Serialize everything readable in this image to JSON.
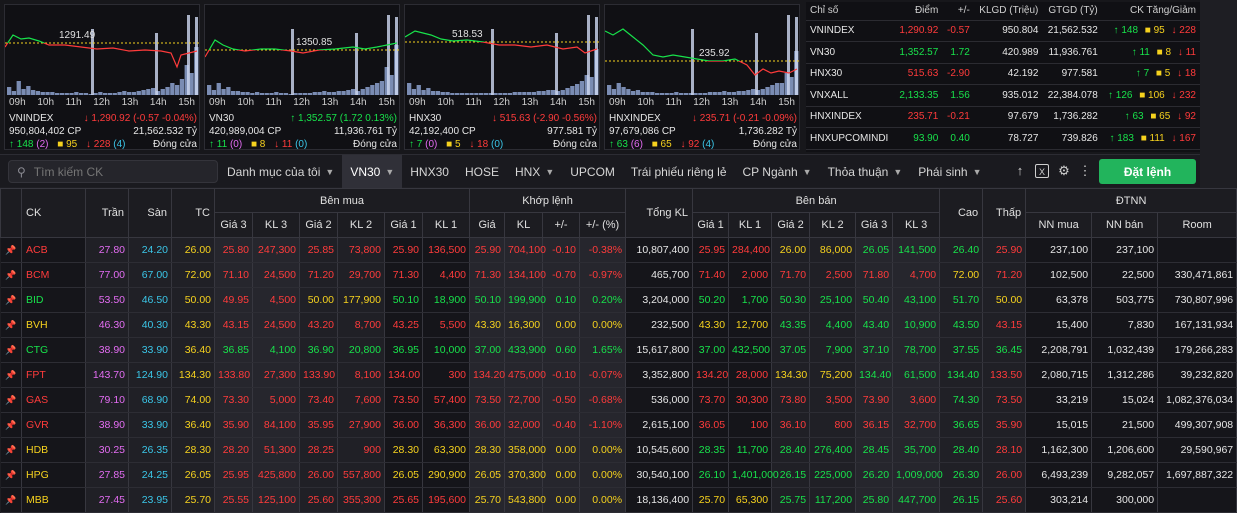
{
  "colors": {
    "up": "#18e24b",
    "down": "#ff3b3b",
    "ref": "#f6d21e",
    "ceiling": "#e36cf2",
    "floor": "#3bc6e8"
  },
  "mini_charts": [
    {
      "name": "VNINDEX",
      "ref_label": "1291.49",
      "volume": "950,804,402 CP",
      "change": "1,290.92 (-0.57 -0.04%)",
      "dir": "down",
      "value": "21,562.532 Tỷ",
      "adv": "148",
      "adv_ce": "(2)",
      "ref": "95",
      "dec": "228",
      "dec_fl": "(4)",
      "status": "Đóng cửa"
    },
    {
      "name": "VN30",
      "ref_label": "1350.85",
      "volume": "420,989,004 CP",
      "change": "1,352.57 (1.72 0.13%)",
      "dir": "up",
      "value": "11,936.761 Tỷ",
      "adv": "11",
      "adv_ce": "(0)",
      "ref": "8",
      "dec": "11",
      "dec_fl": "(0)",
      "status": "Đóng cửa"
    },
    {
      "name": "HNX30",
      "ref_label": "518.53",
      "volume": "42,192,400 CP",
      "change": "515.63 (-2.90 -0.56%)",
      "dir": "down",
      "value": "977.581 Tỷ",
      "adv": "7",
      "adv_ce": "(0)",
      "ref": "5",
      "dec": "18",
      "dec_fl": "(0)",
      "status": "Đóng cửa"
    },
    {
      "name": "HNXINDEX",
      "ref_label": "235.92",
      "volume": "97,679,086 CP",
      "change": "235.71 (-0.21 -0.09%)",
      "dir": "down",
      "value": "1,736.282 Tỷ",
      "adv": "63",
      "adv_ce": "(6)",
      "ref": "65",
      "dec": "92",
      "dec_fl": "(4)",
      "status": "Đóng cửa"
    }
  ],
  "time_ticks": [
    "09h",
    "10h",
    "11h",
    "12h",
    "13h",
    "14h",
    "15h"
  ],
  "index_table": {
    "headers": [
      "Chỉ số",
      "Điểm",
      "+/-",
      "KLGD (Triệu)",
      "GTGD (Tỷ)",
      "CK Tăng/Giảm"
    ],
    "rows": [
      {
        "name": "VNINDEX",
        "point": "1,290.92",
        "chg": "-0.57",
        "dir": "dn",
        "vol": "950.804",
        "val": "21,562.532",
        "adv": "148",
        "ref": "95",
        "dec": "228"
      },
      {
        "name": "VN30",
        "point": "1,352.57",
        "chg": "1.72",
        "dir": "up",
        "vol": "420.989",
        "val": "11,936.761",
        "adv": "11",
        "ref": "8",
        "dec": "11"
      },
      {
        "name": "HNX30",
        "point": "515.63",
        "chg": "-2.90",
        "dir": "dn",
        "vol": "42.192",
        "val": "977.581",
        "adv": "7",
        "ref": "5",
        "dec": "18"
      },
      {
        "name": "VNXALL",
        "point": "2,133.35",
        "chg": "1.56",
        "dir": "up",
        "vol": "935.012",
        "val": "22,384.078",
        "adv": "126",
        "ref": "106",
        "dec": "232"
      },
      {
        "name": "HNXINDEX",
        "point": "235.71",
        "chg": "-0.21",
        "dir": "dn",
        "vol": "97.679",
        "val": "1,736.282",
        "adv": "63",
        "ref": "65",
        "dec": "92"
      },
      {
        "name": "HNXUPCOMINDI",
        "point": "93.90",
        "chg": "0.40",
        "dir": "up",
        "vol": "78.727",
        "val": "739.826",
        "adv": "183",
        "ref": "111",
        "dec": "167"
      }
    ]
  },
  "toolbar": {
    "search_placeholder": "Tìm kiếm CK",
    "menu": [
      "Danh mục của tôi",
      "VN30",
      "HNX30",
      "HOSE",
      "HNX",
      "UPCOM",
      "Trái phiếu riêng lẻ",
      "CP Ngành",
      "Thỏa thuận",
      "Phái sinh"
    ],
    "menu_chevron": [
      true,
      true,
      false,
      false,
      true,
      false,
      false,
      true,
      true,
      true
    ],
    "active": 1,
    "order_button": "Đặt lệnh"
  },
  "board_headers": {
    "ck": "CK",
    "tran": "Trần",
    "san": "Sàn",
    "tc": "TC",
    "ben_mua": "Bên mua",
    "khop_lenh": "Khớp lệnh",
    "tong_kl": "Tổng KL",
    "ben_ban": "Bên bán",
    "cao": "Cao",
    "thap": "Thấp",
    "dtnn": "ĐTNN",
    "sub": [
      "Giá 3",
      "KL 3",
      "Giá 2",
      "KL 2",
      "Giá 1",
      "KL 1",
      "Giá",
      "KL",
      "+/-",
      "+/- (%)",
      "Giá 1",
      "KL 1",
      "Giá 2",
      "KL 2",
      "Giá 3",
      "KL 3",
      "NN mua",
      "NN bán",
      "Room"
    ]
  },
  "board_rows": [
    {
      "ck": "ACB",
      "c": "dn",
      "tran": "27.80",
      "san": "24.20",
      "tc": "26.00",
      "b": [
        [
          "25.80",
          "dn"
        ],
        [
          "247,300",
          "dn"
        ],
        [
          "25.85",
          "dn"
        ],
        [
          "73,800",
          "dn"
        ],
        [
          "25.90",
          "dn"
        ],
        [
          "136,500",
          "dn"
        ]
      ],
      "m": [
        [
          "25.90",
          "dn"
        ],
        [
          "704,100",
          "dn"
        ],
        [
          "-0.10",
          "dn"
        ],
        [
          "-0.38%",
          "dn"
        ]
      ],
      "tkl": "10,807,400",
      "s": [
        [
          "25.95",
          "dn"
        ],
        [
          "284,400",
          "dn"
        ],
        [
          "26.00",
          "rf"
        ],
        [
          "86,000",
          "rf"
        ],
        [
          "26.05",
          "up"
        ],
        [
          "141,500",
          "up"
        ]
      ],
      "cao": [
        "26.40",
        "up"
      ],
      "thap": [
        "25.90",
        "dn"
      ],
      "nn": [
        "237,100",
        "237,100",
        ""
      ]
    },
    {
      "ck": "BCM",
      "c": "dn",
      "tran": "77.00",
      "san": "67.00",
      "tc": "72.00",
      "b": [
        [
          "71.10",
          "dn"
        ],
        [
          "24,500",
          "dn"
        ],
        [
          "71.20",
          "dn"
        ],
        [
          "29,700",
          "dn"
        ],
        [
          "71.30",
          "dn"
        ],
        [
          "4,400",
          "dn"
        ]
      ],
      "m": [
        [
          "71.30",
          "dn"
        ],
        [
          "134,100",
          "dn"
        ],
        [
          "-0.70",
          "dn"
        ],
        [
          "-0.97%",
          "dn"
        ]
      ],
      "tkl": "465,700",
      "s": [
        [
          "71.40",
          "dn"
        ],
        [
          "2,000",
          "dn"
        ],
        [
          "71.70",
          "dn"
        ],
        [
          "2,500",
          "dn"
        ],
        [
          "71.80",
          "dn"
        ],
        [
          "4,700",
          "dn"
        ]
      ],
      "cao": [
        "72.00",
        "rf"
      ],
      "thap": [
        "71.20",
        "dn"
      ],
      "nn": [
        "102,500",
        "22,500",
        "330,471,861"
      ]
    },
    {
      "ck": "BID",
      "c": "up",
      "tran": "53.50",
      "san": "46.50",
      "tc": "50.00",
      "b": [
        [
          "49.95",
          "dn"
        ],
        [
          "4,500",
          "dn"
        ],
        [
          "50.00",
          "rf"
        ],
        [
          "177,900",
          "rf"
        ],
        [
          "50.10",
          "up"
        ],
        [
          "18,900",
          "up"
        ]
      ],
      "m": [
        [
          "50.10",
          "up"
        ],
        [
          "199,900",
          "up"
        ],
        [
          "0.10",
          "up"
        ],
        [
          "0.20%",
          "up"
        ]
      ],
      "tkl": "3,204,000",
      "s": [
        [
          "50.20",
          "up"
        ],
        [
          "1,700",
          "up"
        ],
        [
          "50.30",
          "up"
        ],
        [
          "25,100",
          "up"
        ],
        [
          "50.40",
          "up"
        ],
        [
          "43,100",
          "up"
        ]
      ],
      "cao": [
        "51.70",
        "up"
      ],
      "thap": [
        "50.00",
        "rf"
      ],
      "nn": [
        "63,378",
        "503,775",
        "730,807,996"
      ]
    },
    {
      "ck": "BVH",
      "c": "rf",
      "tran": "46.30",
      "san": "40.30",
      "tc": "43.30",
      "b": [
        [
          "43.15",
          "dn"
        ],
        [
          "24,500",
          "dn"
        ],
        [
          "43.20",
          "dn"
        ],
        [
          "8,700",
          "dn"
        ],
        [
          "43.25",
          "dn"
        ],
        [
          "5,500",
          "dn"
        ]
      ],
      "m": [
        [
          "43.30",
          "rf"
        ],
        [
          "16,300",
          "rf"
        ],
        [
          "0.00",
          "rf"
        ],
        [
          "0.00%",
          "rf"
        ]
      ],
      "tkl": "232,500",
      "s": [
        [
          "43.30",
          "rf"
        ],
        [
          "12,700",
          "rf"
        ],
        [
          "43.35",
          "up"
        ],
        [
          "4,400",
          "up"
        ],
        [
          "43.40",
          "up"
        ],
        [
          "10,900",
          "up"
        ]
      ],
      "cao": [
        "43.50",
        "up"
      ],
      "thap": [
        "43.15",
        "dn"
      ],
      "nn": [
        "15,400",
        "7,830",
        "167,131,934"
      ]
    },
    {
      "ck": "CTG",
      "c": "up",
      "tran": "38.90",
      "san": "33.90",
      "tc": "36.40",
      "b": [
        [
          "36.85",
          "up"
        ],
        [
          "4,100",
          "up"
        ],
        [
          "36.90",
          "up"
        ],
        [
          "20,800",
          "up"
        ],
        [
          "36.95",
          "up"
        ],
        [
          "10,000",
          "up"
        ]
      ],
      "m": [
        [
          "37.00",
          "up"
        ],
        [
          "433,900",
          "up"
        ],
        [
          "0.60",
          "up"
        ],
        [
          "1.65%",
          "up"
        ]
      ],
      "tkl": "15,617,800",
      "s": [
        [
          "37.00",
          "up"
        ],
        [
          "432,500",
          "up"
        ],
        [
          "37.05",
          "up"
        ],
        [
          "7,900",
          "up"
        ],
        [
          "37.10",
          "up"
        ],
        [
          "78,700",
          "up"
        ]
      ],
      "cao": [
        "37.55",
        "up"
      ],
      "thap": [
        "36.45",
        "up"
      ],
      "nn": [
        "2,208,791",
        "1,032,439",
        "179,266,283"
      ]
    },
    {
      "ck": "FPT",
      "c": "dn",
      "tran": "143.70",
      "san": "124.90",
      "tc": "134.30",
      "b": [
        [
          "133.80",
          "dn"
        ],
        [
          "27,300",
          "dn"
        ],
        [
          "133.90",
          "dn"
        ],
        [
          "8,100",
          "dn"
        ],
        [
          "134.00",
          "dn"
        ],
        [
          "300",
          "dn"
        ]
      ],
      "m": [
        [
          "134.20",
          "dn"
        ],
        [
          "475,000",
          "dn"
        ],
        [
          "-0.10",
          "dn"
        ],
        [
          "-0.07%",
          "dn"
        ]
      ],
      "tkl": "3,352,800",
      "s": [
        [
          "134.20",
          "dn"
        ],
        [
          "28,000",
          "dn"
        ],
        [
          "134.30",
          "rf"
        ],
        [
          "75,200",
          "rf"
        ],
        [
          "134.40",
          "up"
        ],
        [
          "61,500",
          "up"
        ]
      ],
      "cao": [
        "134.40",
        "up"
      ],
      "thap": [
        "133.50",
        "dn"
      ],
      "nn": [
        "2,080,715",
        "1,312,286",
        "39,232,820"
      ]
    },
    {
      "ck": "GAS",
      "c": "dn",
      "tran": "79.10",
      "san": "68.90",
      "tc": "74.00",
      "b": [
        [
          "73.30",
          "dn"
        ],
        [
          "5,000",
          "dn"
        ],
        [
          "73.40",
          "dn"
        ],
        [
          "7,600",
          "dn"
        ],
        [
          "73.50",
          "dn"
        ],
        [
          "57,400",
          "dn"
        ]
      ],
      "m": [
        [
          "73.50",
          "dn"
        ],
        [
          "72,700",
          "dn"
        ],
        [
          "-0.50",
          "dn"
        ],
        [
          "-0.68%",
          "dn"
        ]
      ],
      "tkl": "536,000",
      "s": [
        [
          "73.70",
          "dn"
        ],
        [
          "30,300",
          "dn"
        ],
        [
          "73.80",
          "dn"
        ],
        [
          "3,500",
          "dn"
        ],
        [
          "73.90",
          "dn"
        ],
        [
          "3,600",
          "dn"
        ]
      ],
      "cao": [
        "74.30",
        "up"
      ],
      "thap": [
        "73.50",
        "dn"
      ],
      "nn": [
        "33,219",
        "15,024",
        "1,082,376,034"
      ]
    },
    {
      "ck": "GVR",
      "c": "dn",
      "tran": "38.90",
      "san": "33.90",
      "tc": "36.40",
      "b": [
        [
          "35.90",
          "dn"
        ],
        [
          "84,100",
          "dn"
        ],
        [
          "35.95",
          "dn"
        ],
        [
          "27,900",
          "dn"
        ],
        [
          "36.00",
          "dn"
        ],
        [
          "36,300",
          "dn"
        ]
      ],
      "m": [
        [
          "36.00",
          "dn"
        ],
        [
          "32,000",
          "dn"
        ],
        [
          "-0.40",
          "dn"
        ],
        [
          "-1.10%",
          "dn"
        ]
      ],
      "tkl": "2,615,100",
      "s": [
        [
          "36.05",
          "dn"
        ],
        [
          "100",
          "dn"
        ],
        [
          "36.10",
          "dn"
        ],
        [
          "800",
          "dn"
        ],
        [
          "36.15",
          "dn"
        ],
        [
          "32,700",
          "dn"
        ]
      ],
      "cao": [
        "36.65",
        "up"
      ],
      "thap": [
        "35.90",
        "dn"
      ],
      "nn": [
        "15,015",
        "21,500",
        "499,307,908"
      ]
    },
    {
      "ck": "HDB",
      "c": "rf",
      "tran": "30.25",
      "san": "26.35",
      "tc": "28.30",
      "b": [
        [
          "28.20",
          "dn"
        ],
        [
          "51,300",
          "dn"
        ],
        [
          "28.25",
          "dn"
        ],
        [
          "900",
          "dn"
        ],
        [
          "28.30",
          "rf"
        ],
        [
          "63,300",
          "rf"
        ]
      ],
      "m": [
        [
          "28.30",
          "rf"
        ],
        [
          "358,000",
          "rf"
        ],
        [
          "0.00",
          "rf"
        ],
        [
          "0.00%",
          "rf"
        ]
      ],
      "tkl": "10,545,600",
      "s": [
        [
          "28.35",
          "up"
        ],
        [
          "11,700",
          "up"
        ],
        [
          "28.40",
          "up"
        ],
        [
          "276,400",
          "up"
        ],
        [
          "28.45",
          "up"
        ],
        [
          "35,700",
          "up"
        ]
      ],
      "cao": [
        "28.40",
        "up"
      ],
      "thap": [
        "28.10",
        "dn"
      ],
      "nn": [
        "1,162,300",
        "1,206,600",
        "29,590,967"
      ]
    },
    {
      "ck": "HPG",
      "c": "rf",
      "tran": "27.85",
      "san": "24.25",
      "tc": "26.05",
      "b": [
        [
          "25.95",
          "dn"
        ],
        [
          "425,800",
          "dn"
        ],
        [
          "26.00",
          "dn"
        ],
        [
          "557,800",
          "dn"
        ],
        [
          "26.05",
          "rf"
        ],
        [
          "290,900",
          "rf"
        ]
      ],
      "m": [
        [
          "26.05",
          "rf"
        ],
        [
          "370,300",
          "rf"
        ],
        [
          "0.00",
          "rf"
        ],
        [
          "0.00%",
          "rf"
        ]
      ],
      "tkl": "30,540,100",
      "s": [
        [
          "26.10",
          "up"
        ],
        [
          "1,401,000",
          "up"
        ],
        [
          "26.15",
          "up"
        ],
        [
          "225,000",
          "up"
        ],
        [
          "26.20",
          "up"
        ],
        [
          "1,009,000",
          "up"
        ]
      ],
      "cao": [
        "26.30",
        "up"
      ],
      "thap": [
        "26.00",
        "dn"
      ],
      "nn": [
        "6,493,239",
        "9,282,057",
        "1,697,887,322"
      ]
    },
    {
      "ck": "MBB",
      "c": "rf",
      "tran": "27.45",
      "san": "23.95",
      "tc": "25.70",
      "b": [
        [
          "25.55",
          "dn"
        ],
        [
          "125,100",
          "dn"
        ],
        [
          "25.60",
          "dn"
        ],
        [
          "355,300",
          "dn"
        ],
        [
          "25.65",
          "dn"
        ],
        [
          "195,600",
          "dn"
        ]
      ],
      "m": [
        [
          "25.70",
          "rf"
        ],
        [
          "543,800",
          "rf"
        ],
        [
          "0.00",
          "rf"
        ],
        [
          "0.00%",
          "rf"
        ]
      ],
      "tkl": "18,136,400",
      "s": [
        [
          "25.70",
          "rf"
        ],
        [
          "65,300",
          "rf"
        ],
        [
          "25.75",
          "up"
        ],
        [
          "117,200",
          "up"
        ],
        [
          "25.80",
          "up"
        ],
        [
          "447,700",
          "up"
        ]
      ],
      "cao": [
        "26.15",
        "up"
      ],
      "thap": [
        "25.60",
        "dn"
      ],
      "nn": [
        "303,214",
        "300,000",
        ""
      ]
    }
  ]
}
